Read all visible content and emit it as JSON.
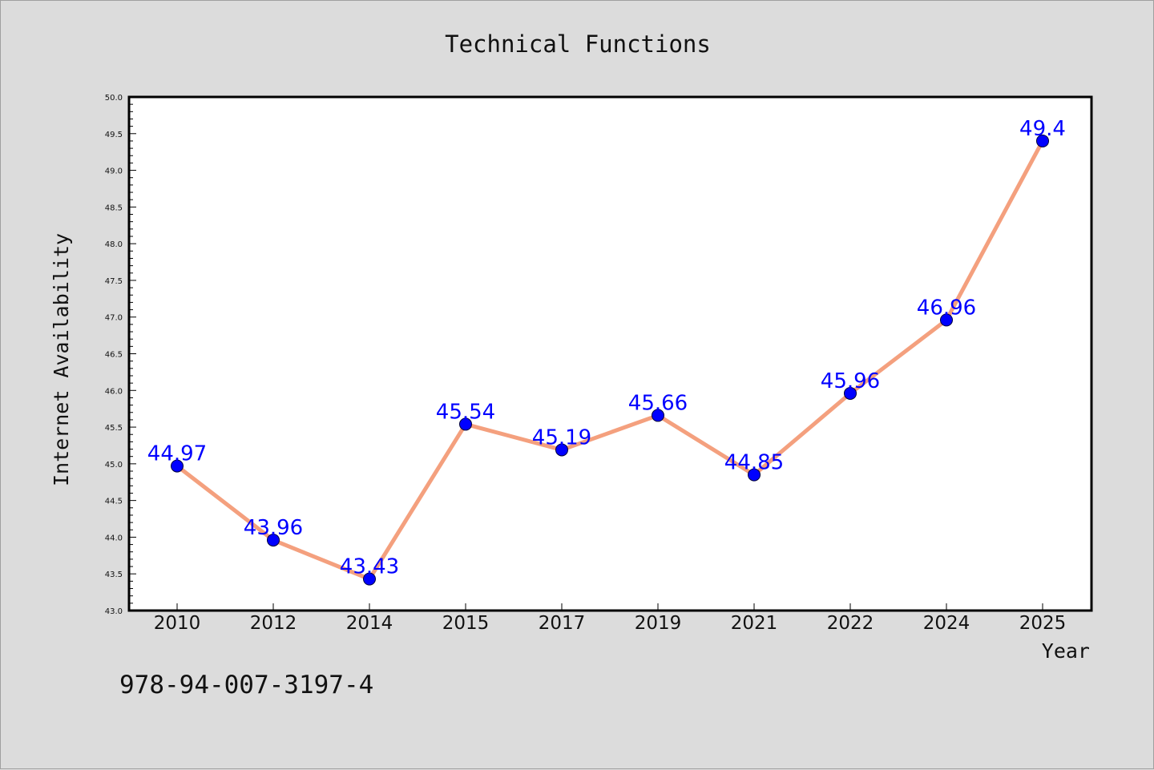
{
  "chart_data": {
    "type": "line",
    "title": "Technical Functions",
    "xlabel": "Year",
    "ylabel": "Internet Availability",
    "categories": [
      "2010",
      "2012",
      "2014",
      "2015",
      "2017",
      "2019",
      "2021",
      "2022",
      "2024",
      "2025"
    ],
    "series": [
      {
        "values": [
          44.97,
          43.96,
          43.43,
          45.54,
          45.19,
          45.66,
          44.85,
          45.96,
          46.96,
          49.4
        ],
        "data_labels": [
          "44.97",
          "43.96",
          "43.43",
          "45.54",
          "45.19",
          "45.66",
          "44.85",
          "45.96",
          "46.96",
          "49.4"
        ]
      }
    ],
    "ylim": [
      43.0,
      50.0
    ],
    "yticks": [
      "43.0",
      "43.5",
      "44.0",
      "44.5",
      "45.0",
      "45.5",
      "46.0",
      "46.5",
      "47.0",
      "47.5",
      "48.0",
      "48.5",
      "49.0",
      "49.5",
      "50.0"
    ],
    "grid": false,
    "legend": "none",
    "colors": {
      "line": "#f4a07e",
      "marker": "#0000ff",
      "data_label": "#0000ff",
      "background": "#dcdcdc",
      "plot_background": "#ffffff"
    }
  },
  "caption": "978-94-007-3197-4"
}
